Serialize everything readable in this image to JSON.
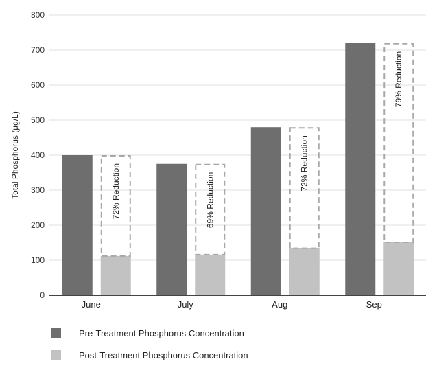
{
  "chart_data": {
    "type": "bar",
    "categories": [
      "June",
      "July",
      "Aug",
      "Sep"
    ],
    "series": [
      {
        "name": "Pre-Treatment Phosphorus Concentration",
        "values": [
          400,
          375,
          480,
          720
        ],
        "color": "#6e6e6e"
      },
      {
        "name": "Post-Treatment Phosphorus Concentration",
        "values": [
          112,
          116,
          134,
          151
        ],
        "color": "#c2c2c2"
      }
    ],
    "annotations": [
      "72% Reduction",
      "69% Reduction",
      "72% Reduction",
      "79% Reduction"
    ],
    "ylabel": "Total Phosphorus (µg/L)",
    "ylim": [
      0,
      800
    ],
    "yticks": [
      0,
      100,
      200,
      300,
      400,
      500,
      600,
      700,
      800
    ],
    "grid": true,
    "legend_position": "bottom"
  }
}
